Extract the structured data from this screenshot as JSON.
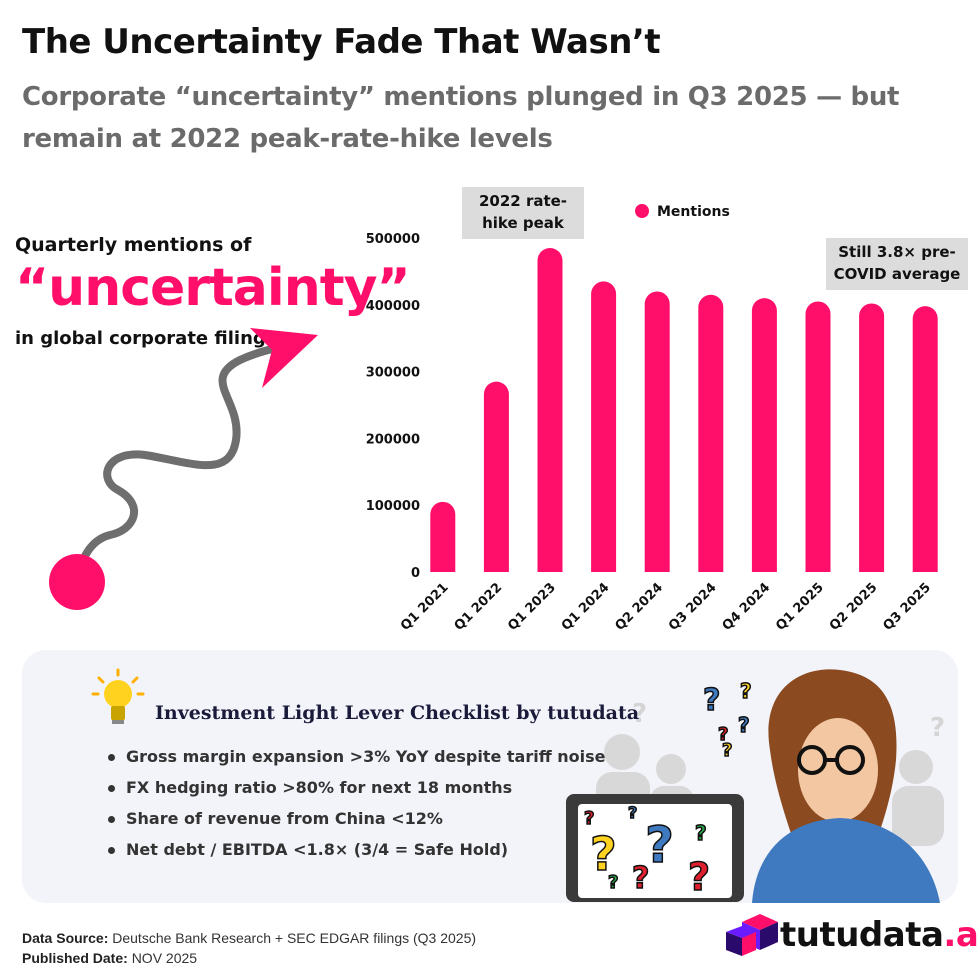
{
  "header": {
    "title": "The Uncertainty Fade That Wasn’t",
    "subtitle": "Corporate “uncertainty” mentions plunged in Q3 2025 — but remain at 2022 peak-rate-hike levels"
  },
  "side_label": {
    "top": "Quarterly mentions of",
    "big": "“uncertainty”",
    "bottom": "in global corporate filings"
  },
  "chart_data": {
    "type": "bar",
    "categories": [
      "Q1 2021",
      "Q1 2022",
      "Q1 2023",
      "Q1 2024",
      "Q2 2024",
      "Q3 2024",
      "Q4 2024",
      "Q1 2025",
      "Q2 2025",
      "Q3 2025"
    ],
    "series": [
      {
        "name": "Mentions",
        "values": [
          105000,
          285000,
          485000,
          435000,
          420000,
          415000,
          410000,
          405000,
          402000,
          398000
        ]
      }
    ],
    "ylim": [
      0,
      500000
    ],
    "yticks": [
      "0",
      "100000",
      "200000",
      "300000",
      "400000",
      "500000"
    ],
    "grid": false,
    "legend": "top",
    "annotations": [
      {
        "text": "2022 rate-hike peak",
        "lines": [
          "2022 rate-",
          "hike peak"
        ],
        "near": "Q1 2023"
      },
      {
        "text": "Still 3.8× pre-COVID average",
        "lines": [
          "Still 3.8× pre-",
          "COVID average"
        ],
        "near": "Q3 2025"
      }
    ],
    "color": "#ff0f6a"
  },
  "checklist": {
    "title": "Investment Light Lever Checklist by tutudata",
    "items": [
      "Gross margin expansion >3% YoY despite tariff noise",
      "FX hedging ratio >80% for next 18 months",
      "Share of revenue from China <12%",
      "Net debt / EBITDA <1.8× (3/4 = Safe Hold)"
    ]
  },
  "footer": {
    "source_label": "Data Source:",
    "source": "Deutsche Bank Research + SEC EDGAR filings (Q3 2025)",
    "date_label": "Published Date:",
    "date": "NOV 2025"
  },
  "brand": {
    "name": "tutudata",
    "suffix": ".ai"
  },
  "icons": [
    "lightbulb-icon",
    "arrow-icon",
    "logo-cube-icon",
    "question-mark-icon"
  ]
}
